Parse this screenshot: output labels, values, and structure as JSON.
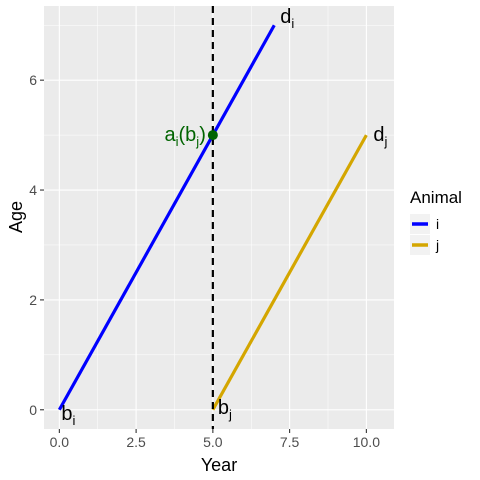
{
  "chart_data": {
    "type": "line",
    "xlabel": "Year",
    "ylabel": "Age",
    "xlim": [
      -0.5,
      10.9
    ],
    "ylim": [
      -0.35,
      7.35
    ],
    "x_ticks": [
      0.0,
      2.5,
      5.0,
      7.5,
      10.0
    ],
    "x_tick_labels": [
      "0.0",
      "2.5",
      "5.0",
      "7.5",
      "10.0"
    ],
    "y_ticks": [
      0,
      2,
      4,
      6
    ],
    "y_tick_labels": [
      "0",
      "2",
      "4",
      "6"
    ],
    "grid": true,
    "legend": {
      "title": "Animal",
      "placement": "right",
      "entries": [
        {
          "label": "i",
          "color": "#0000ff"
        },
        {
          "label": "j",
          "color": "#d4a600"
        }
      ]
    },
    "series": [
      {
        "name": "i",
        "color": "#0000ff",
        "points": [
          {
            "x": 0,
            "y": 0
          },
          {
            "x": 7,
            "y": 7
          }
        ]
      },
      {
        "name": "j",
        "color": "#d4a600",
        "points": [
          {
            "x": 5,
            "y": 0
          },
          {
            "x": 10,
            "y": 5
          }
        ]
      }
    ],
    "vline": {
      "x": 5,
      "style": "dashed",
      "color": "#000000"
    },
    "marker": {
      "x": 5,
      "y": 5,
      "color": "#006400"
    },
    "annotations": [
      {
        "id": "b_i",
        "base": "b",
        "sub": "i",
        "x": 0,
        "y": 0,
        "anchor": "start",
        "color": "#000000"
      },
      {
        "id": "d_i",
        "base": "d",
        "sub": "i",
        "x": 7,
        "y": 7,
        "anchor": "start",
        "color": "#000000"
      },
      {
        "id": "b_j",
        "base": "b",
        "sub": "j",
        "x": 5,
        "y": 0,
        "anchor": "start",
        "color": "#000000"
      },
      {
        "id": "d_j",
        "base": "d",
        "sub": "j",
        "x": 10,
        "y": 5,
        "anchor": "start",
        "color": "#000000"
      },
      {
        "id": "a_i_b_j",
        "parts": [
          [
            "a",
            ""
          ],
          [
            "i",
            "sub"
          ],
          [
            "(b",
            ""
          ],
          [
            "j",
            "sub"
          ],
          [
            ")",
            ""
          ]
        ],
        "x": 5,
        "y": 5,
        "anchor": "end",
        "color": "#006400"
      }
    ]
  }
}
